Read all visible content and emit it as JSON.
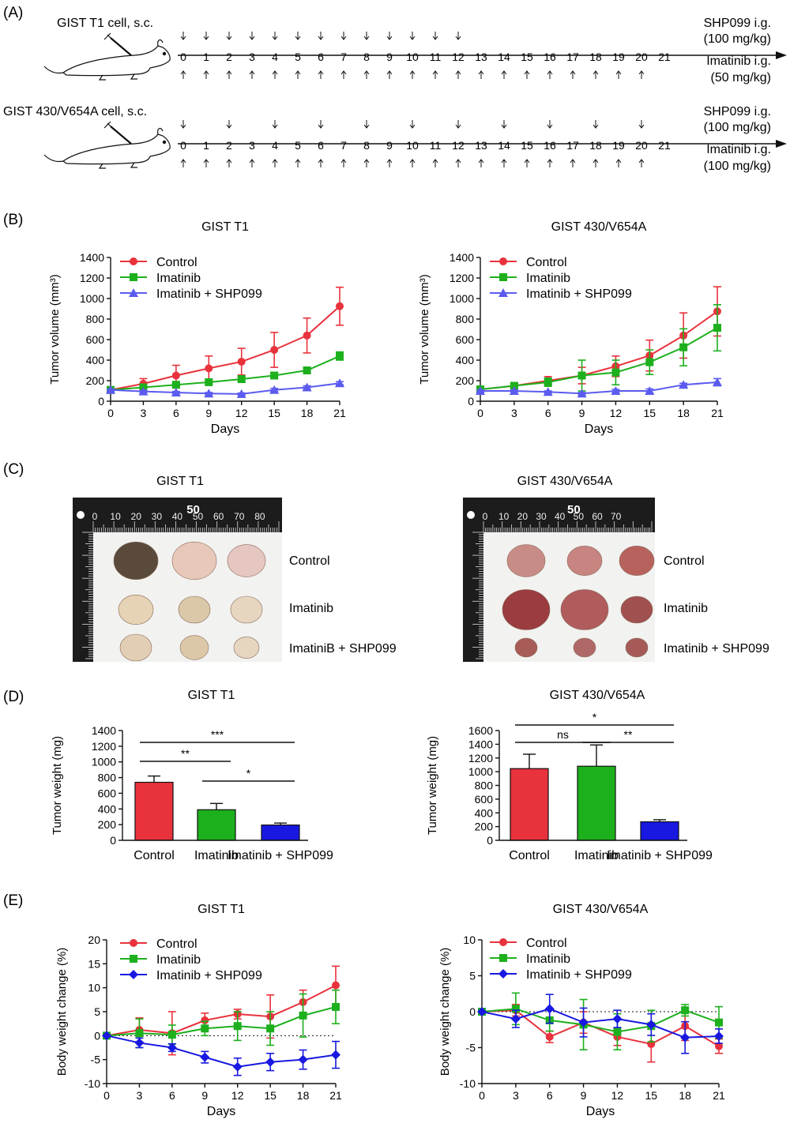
{
  "panel_a": {
    "label": "(A)",
    "rows": [
      {
        "cell": "GIST T1 cell, s.c.",
        "days": [
          "0",
          "1",
          "2",
          "3",
          "4",
          "5",
          "6",
          "7",
          "8",
          "9",
          "10",
          "11",
          "12",
          "13",
          "14",
          "15",
          "16",
          "17",
          "18",
          "19",
          "20",
          "21"
        ],
        "top_drug": [
          "SHP099 i.g.",
          "(100 mg/kg)"
        ],
        "bottom_drug": [
          "Imatinib i.g.",
          "(50 mg/kg)"
        ],
        "top_arrow_days": [
          0,
          1,
          2,
          3,
          4,
          5,
          6,
          7,
          8,
          9,
          10,
          11,
          12
        ],
        "bottom_arrow_days": [
          0,
          1,
          2,
          3,
          4,
          5,
          6,
          7,
          8,
          9,
          10,
          11,
          12,
          13,
          14,
          15,
          16,
          17,
          18,
          19,
          20
        ]
      },
      {
        "cell": "GIST 430/V654A cell, s.c.",
        "days": [
          "0",
          "1",
          "2",
          "3",
          "4",
          "5",
          "6",
          "7",
          "8",
          "9",
          "10",
          "11",
          "12",
          "13",
          "14",
          "15",
          "16",
          "17",
          "18",
          "19",
          "20",
          "21"
        ],
        "top_drug": [
          "SHP099 i.g.",
          "(100 mg/kg)"
        ],
        "bottom_drug": [
          "Imatinib i.g.",
          "(100 mg/kg)"
        ],
        "top_arrow_days": [
          0,
          2,
          4,
          6,
          8,
          10,
          12,
          14,
          16,
          18,
          20
        ],
        "bottom_arrow_days": [
          0,
          1,
          2,
          3,
          4,
          5,
          6,
          7,
          8,
          9,
          10,
          11,
          12,
          13,
          14,
          15,
          16,
          17,
          18,
          19,
          20
        ]
      }
    ]
  },
  "panel_labels": {
    "b": "(B)",
    "c": "(C)",
    "d": "(D)",
    "e": "(E)"
  },
  "colors": {
    "control": "#e8323c",
    "imatinib": "#1db01d",
    "combo": "#5b5bef",
    "combo_dark": "#1818e0"
  },
  "chart_data": [
    {
      "id": "b1",
      "type": "line",
      "title": "GIST T1",
      "xlabel": "Days",
      "ylabel": "Tumor volume (mm³)",
      "x": [
        0,
        3,
        6,
        9,
        12,
        15,
        18,
        21
      ],
      "xticks": [
        "0",
        "3",
        "6",
        "9",
        "12",
        "15",
        "18",
        "21"
      ],
      "ylim": [
        0,
        1400
      ],
      "yticks": [
        "0",
        "200",
        "400",
        "600",
        "800",
        "1000",
        "1200",
        "1400"
      ],
      "legend": [
        "Control",
        "Imatinib",
        "Imatinib + SHP099"
      ],
      "series": [
        {
          "name": "Control",
          "values": [
            110,
            170,
            250,
            320,
            385,
            500,
            640,
            925
          ],
          "errors": [
            15,
            50,
            100,
            120,
            130,
            170,
            170,
            185
          ]
        },
        {
          "name": "Imatinib",
          "values": [
            110,
            135,
            160,
            185,
            215,
            250,
            300,
            440
          ],
          "errors": [
            15,
            20,
            20,
            25,
            25,
            30,
            25,
            40
          ]
        },
        {
          "name": "Imatinib + SHP099",
          "values": [
            110,
            95,
            85,
            75,
            70,
            110,
            135,
            175
          ],
          "errors": [
            10,
            10,
            10,
            10,
            10,
            15,
            15,
            15
          ]
        }
      ]
    },
    {
      "id": "b2",
      "type": "line",
      "title": "GIST 430/V654A",
      "xlabel": "Days",
      "ylabel": "Tumor volume (mm³)",
      "x": [
        0,
        3,
        6,
        9,
        12,
        15,
        18,
        21
      ],
      "xticks": [
        "0",
        "3",
        "6",
        "9",
        "12",
        "15",
        "18",
        "21"
      ],
      "ylim": [
        0,
        1400
      ],
      "yticks": [
        "0",
        "200",
        "400",
        "600",
        "800",
        "1000",
        "1200",
        "1400"
      ],
      "legend": [
        "Control",
        "Imatinib",
        "Imatinib + SHP099"
      ],
      "series": [
        {
          "name": "Control",
          "values": [
            115,
            150,
            200,
            250,
            340,
            445,
            640,
            875
          ],
          "errors": [
            20,
            20,
            40,
            80,
            100,
            150,
            220,
            240
          ]
        },
        {
          "name": "Imatinib",
          "values": [
            115,
            150,
            185,
            250,
            280,
            380,
            525,
            715
          ],
          "errors": [
            20,
            20,
            40,
            150,
            120,
            120,
            180,
            225
          ]
        },
        {
          "name": "Imatinib + SHP099",
          "values": [
            100,
            100,
            90,
            75,
            100,
            100,
            160,
            185
          ],
          "errors": [
            10,
            10,
            10,
            10,
            15,
            20,
            15,
            35
          ]
        }
      ]
    },
    {
      "id": "d1",
      "type": "bar",
      "title": "GIST T1",
      "ylabel": "Tumor weight (mg)",
      "categories": [
        "Control",
        "Imatinib",
        "Imatinib + SHP099"
      ],
      "values": [
        740,
        390,
        195
      ],
      "errors": [
        80,
        80,
        25
      ],
      "ylim": [
        0,
        1400
      ],
      "yticks": [
        "0",
        "200",
        "400",
        "600",
        "800",
        "1000",
        "1200",
        "1400"
      ],
      "significance": [
        {
          "from": 0,
          "to": 2,
          "label": "***"
        },
        {
          "from": 0,
          "to": 1,
          "label": "**"
        },
        {
          "from": 1,
          "to": 2,
          "label": "*"
        }
      ]
    },
    {
      "id": "d2",
      "type": "bar",
      "title": "GIST 430/V654A",
      "ylabel": "Tumor weight (mg)",
      "categories": [
        "Control",
        "Imatinib",
        "Imatinib + SHP099"
      ],
      "values": [
        1045,
        1080,
        270
      ],
      "errors": [
        210,
        310,
        30
      ],
      "ylim": [
        0,
        1600
      ],
      "yticks": [
        "0",
        "200",
        "400",
        "600",
        "800",
        "1000",
        "1200",
        "1400",
        "1600"
      ],
      "significance": [
        {
          "from": 0,
          "to": 2,
          "label": "*"
        },
        {
          "from": 0,
          "to": 1,
          "label": "ns"
        },
        {
          "from": 1,
          "to": 2,
          "label": "**"
        }
      ]
    },
    {
      "id": "e1",
      "type": "line",
      "title": "GIST T1",
      "xlabel": "Days",
      "ylabel": "Body weight change (%)",
      "x": [
        0,
        3,
        6,
        9,
        12,
        15,
        18,
        21
      ],
      "xticks": [
        "0",
        "3",
        "6",
        "9",
        "12",
        "15",
        "18",
        "21"
      ],
      "ylim": [
        -10,
        20
      ],
      "yticks": [
        "-10",
        "-5",
        "0",
        "5",
        "10",
        "15",
        "20"
      ],
      "legend": [
        "Control",
        "Imatinib",
        "Imatinib + SHP099"
      ],
      "series": [
        {
          "name": "Control",
          "values": [
            0,
            1.2,
            0.5,
            3.2,
            4.5,
            4.0,
            7.0,
            10.5
          ],
          "errors": [
            0,
            2.5,
            4.5,
            1.5,
            1.0,
            4.5,
            2.5,
            4.0
          ]
        },
        {
          "name": "Imatinib",
          "values": [
            0,
            0.5,
            0.2,
            1.5,
            2.0,
            1.5,
            4.2,
            6.0
          ],
          "errors": [
            0,
            3.0,
            2.0,
            1.5,
            3.0,
            3.5,
            4.5,
            3.5
          ]
        },
        {
          "name": "Imatinib + SHP099",
          "values": [
            0,
            -1.5,
            -2.5,
            -4.5,
            -6.5,
            -5.5,
            -5.0,
            -4.0
          ],
          "errors": [
            0,
            1.0,
            0.8,
            1.2,
            1.8,
            1.8,
            2.0,
            2.8
          ]
        }
      ]
    },
    {
      "id": "e2",
      "type": "line",
      "title": "GIST 430/V654A",
      "xlabel": "Days",
      "ylabel": "Body weight change (%)",
      "x": [
        0,
        3,
        6,
        9,
        12,
        15,
        18,
        21
      ],
      "xticks": [
        "0",
        "3",
        "6",
        "9",
        "12",
        "15",
        "18",
        "21"
      ],
      "ylim": [
        -10,
        10
      ],
      "yticks": [
        "-10",
        "-5",
        "0",
        "5",
        "10"
      ],
      "legend": [
        "Control",
        "Imatinib",
        "Imatinib + SHP099"
      ],
      "series": [
        {
          "name": "Control",
          "values": [
            0,
            0.2,
            -3.5,
            -1.5,
            -3.5,
            -4.5,
            -2.0,
            -4.8
          ],
          "errors": [
            0,
            0.8,
            0.8,
            1.5,
            1.2,
            2.5,
            2.0,
            1.0
          ]
        },
        {
          "name": "Imatinib",
          "values": [
            0,
            0.4,
            -1.2,
            -1.8,
            -2.8,
            -2.0,
            0.2,
            -1.5
          ],
          "errors": [
            0,
            2.2,
            1.5,
            3.5,
            2.5,
            2.2,
            0.8,
            2.2
          ]
        },
        {
          "name": "Imatinib + SHP099",
          "values": [
            0,
            -1.0,
            0.4,
            -1.5,
            -1.0,
            -1.8,
            -3.6,
            -3.4
          ],
          "errors": [
            0,
            1.2,
            2.0,
            2.0,
            1.2,
            1.5,
            2.2,
            1.0
          ]
        }
      ]
    }
  ],
  "photos": [
    {
      "title": "GIST T1",
      "rows": [
        "Control",
        "Imatinib",
        "ImatiniB + SHP099"
      ],
      "ruler_marks": [
        "0",
        "10",
        "20",
        "30",
        "40",
        "50",
        "60",
        "70",
        "80"
      ],
      "ruler_big": "50"
    },
    {
      "title": "GIST 430/V654A",
      "rows": [
        "Control",
        "Imatinib",
        "Imatinib + SHP099"
      ],
      "ruler_marks": [
        "0",
        "10",
        "20",
        "30",
        "40",
        "50",
        "60",
        "70"
      ],
      "ruler_big": "50"
    }
  ]
}
